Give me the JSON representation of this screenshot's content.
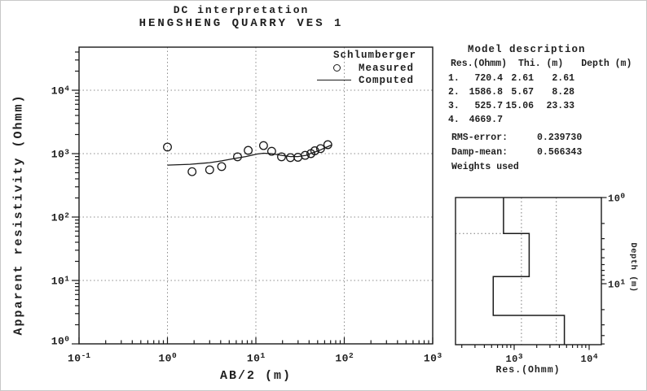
{
  "title": {
    "line1": "DC interpretation",
    "line2": "HENGSHENG QUARRY VES 1"
  },
  "legend": {
    "heading": "Schlumberger",
    "measured": "Measured",
    "computed": "Computed"
  },
  "main_chart": {
    "xlabel": "AB/2 (m)",
    "ylabel": "Apparent resistivity (Ohmm)"
  },
  "model_chart": {
    "xlabel": "Res.(Ohmm)",
    "ylabel": "Depth (m)"
  },
  "model_description": {
    "heading": "Model description",
    "columns": [
      "Res.(Ohmm)",
      "Thi. (m)",
      "Depth (m)"
    ],
    "rows": [
      [
        "1.",
        "720.4",
        "2.61",
        "2.61"
      ],
      [
        "2.",
        "1586.8",
        "5.67",
        "8.28"
      ],
      [
        "3.",
        "525.7",
        "15.06",
        "23.33"
      ],
      [
        "4.",
        "4669.7",
        "",
        ""
      ]
    ],
    "rms_label": "RMS-error:",
    "rms_value": "0.239730",
    "damp_label": "Damp-mean:",
    "damp_value": "0.566343",
    "weights": "Weights used"
  },
  "colors": {
    "line": "#1a1a1a",
    "grid": "#8c8c8c",
    "background": "#ffffff"
  },
  "chart_data": [
    {
      "type": "scatter",
      "title": "DC interpretation - HENGSHENG QUARRY VES 1",
      "xlabel": "AB/2 (m)",
      "ylabel": "Apparent resistivity (Ohmm)",
      "x_scale": "log",
      "y_scale": "log",
      "xlim": [
        0.1,
        1000
      ],
      "ylim": [
        1,
        48000
      ],
      "x_ticks": [
        0.1,
        1,
        10,
        100,
        1000
      ],
      "y_ticks": [
        1,
        10,
        100,
        1000,
        10000
      ],
      "grid": "dotted at decades",
      "legend_title": "Schlumberger",
      "series": [
        {
          "name": "Measured",
          "type": "scatter",
          "marker": "open-circle",
          "x": [
            1.0,
            1.9,
            3.0,
            4.1,
            6.2,
            8.2,
            12.2,
            15.1,
            19.5,
            24.6,
            29.9,
            36.1,
            41.9,
            46.4,
            53.9,
            65.2
          ],
          "y": [
            1270,
            520,
            555,
            625,
            890,
            1125,
            1340,
            1090,
            890,
            865,
            875,
            940,
            1000,
            1110,
            1200,
            1385
          ]
        },
        {
          "name": "Computed",
          "type": "line",
          "x": [
            1.0,
            1.8,
            3.0,
            4.1,
            5.8,
            7.7,
            10.3,
            12.2,
            15.1,
            19.5,
            24.6,
            29.9,
            36.9,
            43.7,
            51.9,
            60.2,
            72.5
          ],
          "y": [
            660,
            680,
            720,
            770,
            840,
            900,
            985,
            1015,
            1000,
            940,
            900,
            900,
            940,
            1030,
            1120,
            1230,
            1380
          ]
        }
      ]
    },
    {
      "type": "step-model",
      "xlabel": "Res.(Ohmm)",
      "ylabel": "Depth (m)",
      "x_scale": "log",
      "y_scale": "log",
      "xlim": [
        165,
        14500
      ],
      "ylim": [
        1,
        51
      ],
      "x_ticks": [
        1000,
        10000
      ],
      "y_ticks": [
        1,
        10
      ],
      "layer_resistivities": [
        720.4,
        1586.8,
        525.7,
        4669.7
      ],
      "layer_depths": [
        2.61,
        8.28,
        23.33
      ],
      "dotted_guides_res": [
        1250,
        3650
      ],
      "dotted_guide_depth": 2.61
    }
  ]
}
